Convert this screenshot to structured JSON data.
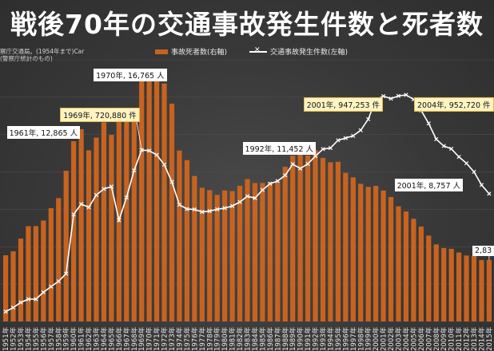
{
  "title": "戦後70年の交通事故発生件数と死者数",
  "source_note": [
    "察庁交通局。(1954年まで)Car",
    "(警察庁統計のもの)"
  ],
  "legend": {
    "bars": "事故死者数(右軸)",
    "line": "交通事故発生件数(左軸)"
  },
  "colors": {
    "bar": "#c8631f",
    "line": "#ffffff",
    "background": "#3b3b3b"
  },
  "chart_data": {
    "type": "bar",
    "x": [
      "1951年",
      "1952年",
      "1953年",
      "1954年",
      "1955年",
      "1956年",
      "1957年",
      "1958年",
      "1959年",
      "1960年",
      "1961年",
      "1962年",
      "1963年",
      "1964年",
      "1965年",
      "1966年",
      "1967年",
      "1968年",
      "1969年",
      "1970年",
      "1971年",
      "1972年",
      "1973年",
      "1974年",
      "1975年",
      "1976年",
      "1977年",
      "1978年",
      "1979年",
      "1980年",
      "1981年",
      "1982年",
      "1983年",
      "1984年",
      "1985年",
      "1986年",
      "1987年",
      "1988年",
      "1989年",
      "1990年",
      "1991年",
      "1992年",
      "1993年",
      "1994年",
      "1995年",
      "1996年",
      "1997年",
      "1998年",
      "1999年",
      "2000年",
      "2001年",
      "2002年",
      "2003年",
      "2004年",
      "2005年",
      "2006年",
      "2007年",
      "2008年",
      "2009年",
      "2010年",
      "2011年",
      "2012年",
      "2013年",
      "2014年",
      "2015年"
    ],
    "series": [
      {
        "name": "事故死者数(右軸)",
        "values": [
          4429,
          4696,
          5544,
          6374,
          6379,
          6751,
          7575,
          8248,
          10079,
          12055,
          12865,
          11445,
          12301,
          13318,
          12484,
          13904,
          13618,
          14256,
          16257,
          16765,
          16278,
          15918,
          14574,
          11432,
          10792,
          9734,
          8945,
          8783,
          8466,
          8760,
          8719,
          9073,
          9520,
          9262,
          9261,
          9317,
          9347,
          10344,
          11086,
          11227,
          11109,
          11452,
          10942,
          10649,
          10679,
          9942,
          9640,
          9211,
          9006,
          9066,
          8757,
          8326,
          7702,
          7358,
          6871,
          6352,
          5744,
          5155,
          4914,
          4863,
          4612,
          4411,
          4373,
          4113,
          4117
        ]
      },
      {
        "name": "交通事故発生件数(左軸)",
        "values": [
          41423,
          58487,
          80019,
          93869,
          93981,
          122691,
          146833,
          168799,
          201292,
          449917,
          493693,
          479825,
          531966,
          557183,
          567286,
          425944,
          521481,
          635056,
          720880,
          718080,
          700290,
          659283,
          586713,
          490452,
          472938,
          471041,
          460649,
          464037,
          471573,
          476677,
          485578,
          502261,
          526362,
          518642,
          552788,
          579190,
          590723,
          614481,
          661363,
          643097,
          662388,
          695345,
          724678,
          729461,
          761794,
          771085,
          780399,
          803878,
          850371,
          931950,
          947253,
          936950,
          948281,
          952720,
          933828,
          887267,
          832454,
          766394,
          737637,
          725924,
          692084,
          665157,
          629033,
          573842,
          536899
        ]
      }
    ],
    "annotations": [
      {
        "label": "1961年, 12,865 人",
        "x": "1961年",
        "series": "事故死者数(右軸)"
      },
      {
        "label": "1969年, 720,880 件",
        "x": "1969年",
        "series": "交通事故発生件数(左軸)"
      },
      {
        "label": "1970年, 16,765 人",
        "x": "1970年",
        "series": "事故死者数(右軸)"
      },
      {
        "label": "1992年, 11,452 人",
        "x": "1992年",
        "series": "事故死者数(右軸)"
      },
      {
        "label": "2001年, 947,253 件",
        "x": "2001年",
        "series": "交通事故発生件数(左軸)"
      },
      {
        "label": "2004年, 952,720 件",
        "x": "2004年",
        "series": "交通事故発生件数(左軸)"
      },
      {
        "label": "2001年, 8,757 人",
        "x": "2001年",
        "series": "事故死者数(右軸)"
      },
      {
        "label": "2,83",
        "x": "2015年",
        "series": "事故死者数(右軸)"
      }
    ],
    "y_right_range": [
      0,
      17500
    ],
    "y_left_range": [
      0,
      1100000
    ],
    "grid": true,
    "legend_position": "top-center"
  }
}
